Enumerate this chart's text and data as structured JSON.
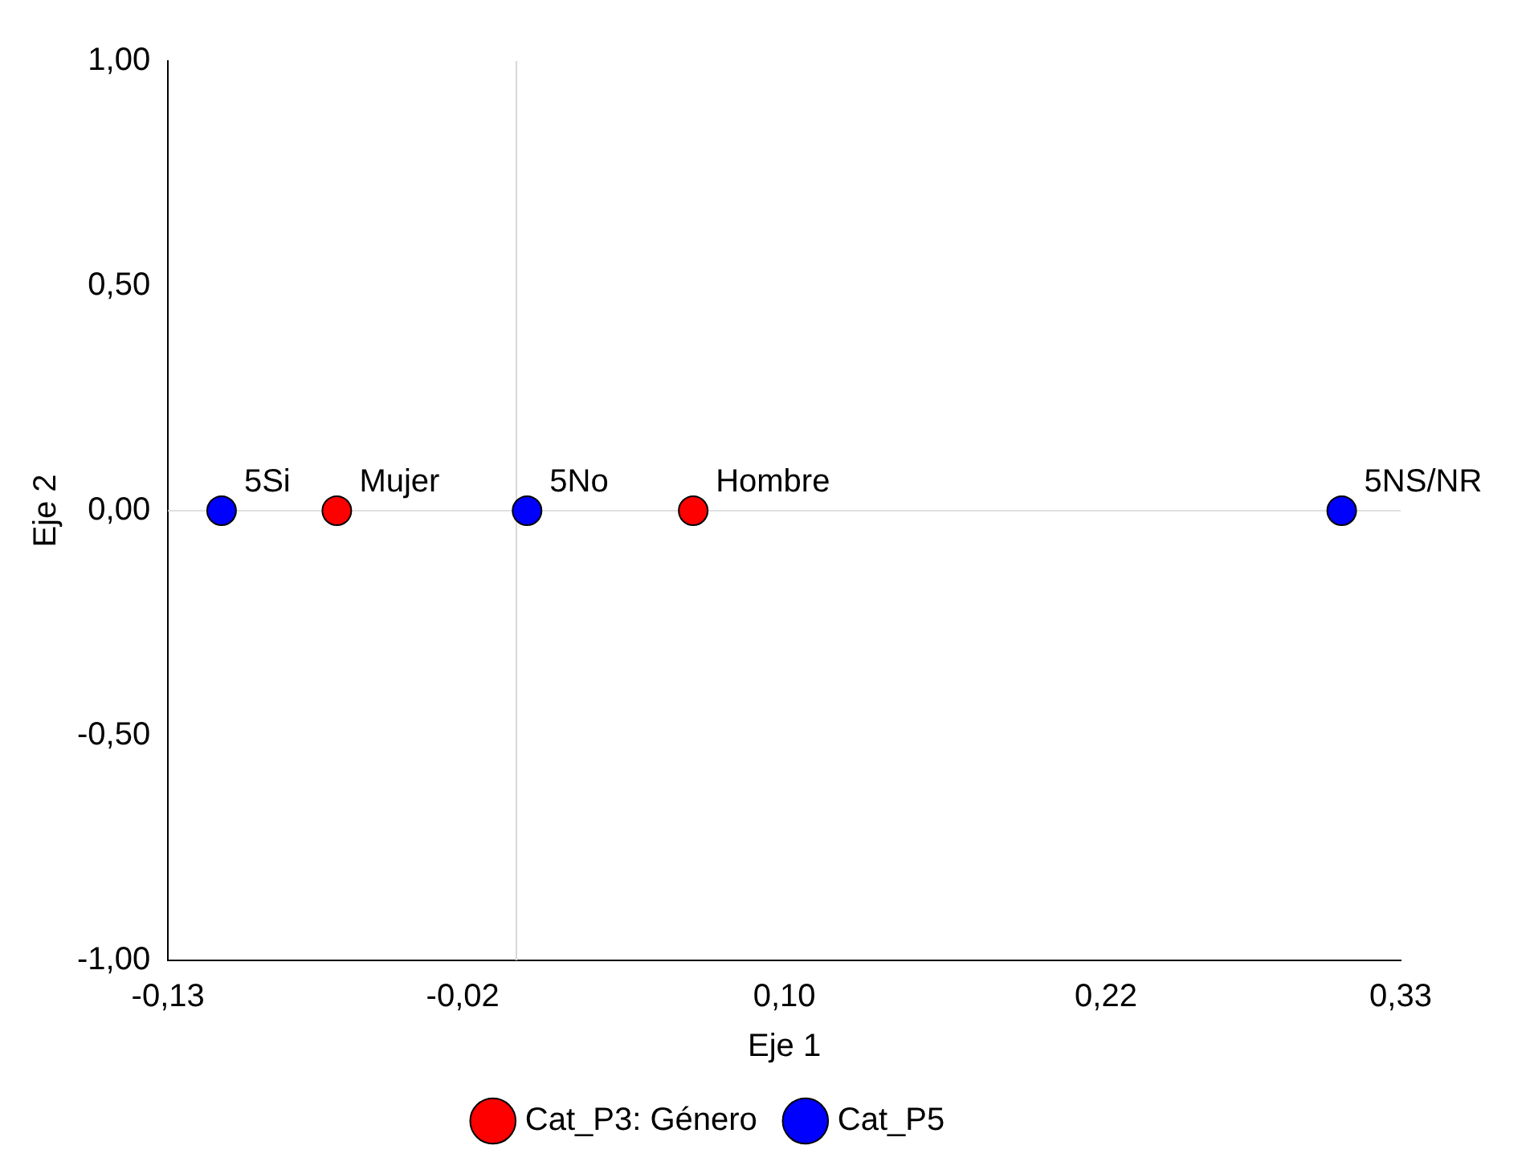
{
  "chart_data": {
    "type": "scatter",
    "xlabel": "Eje 1",
    "ylabel": "Eje 2",
    "series": [
      {
        "name": "Cat_P3: Género",
        "color": "#ff0000",
        "x": [
          -0.067,
          0.066
        ],
        "values": [
          0,
          0
        ]
      },
      {
        "name": "Cat_P5",
        "color": "#0000ff",
        "x": [
          -0.11,
          0.004,
          0.308
        ],
        "values": [
          0,
          0,
          0
        ]
      }
    ],
    "annotations": [
      {
        "text": "Mujer",
        "x": -0.067,
        "y": 0
      },
      {
        "text": "Hombre",
        "x": 0.066,
        "y": 0
      },
      {
        "text": "5Si",
        "x": -0.11,
        "y": 0
      },
      {
        "text": "5No",
        "x": 0.004,
        "y": 0
      },
      {
        "text": "5NS/NR",
        "x": 0.308,
        "y": 0
      }
    ],
    "ref_lines": [
      {
        "axis": "x",
        "value": 0,
        "color": "#d8d8d8"
      },
      {
        "axis": "y",
        "value": 0,
        "color": "#e0e0e0"
      }
    ],
    "xlim": [
      -0.13,
      0.33
    ],
    "xticks": [
      {
        "value": -0.13,
        "label": "-0,13"
      },
      {
        "value": -0.02,
        "label": "-0,02"
      },
      {
        "value": 0.1,
        "label": "0,10"
      },
      {
        "value": 0.22,
        "label": "0,22"
      },
      {
        "value": 0.33,
        "label": "0,33"
      }
    ],
    "ylim": [
      -1,
      1
    ],
    "yticks": [
      {
        "value": -1,
        "label": "-1,00"
      },
      {
        "value": -0.5,
        "label": "-0,50"
      },
      {
        "value": 0,
        "label": "0,00"
      },
      {
        "value": 0.5,
        "label": "0,50"
      },
      {
        "value": 1,
        "label": "1,00"
      }
    ],
    "grid": false,
    "legend": "bottom",
    "marker": "circle"
  }
}
